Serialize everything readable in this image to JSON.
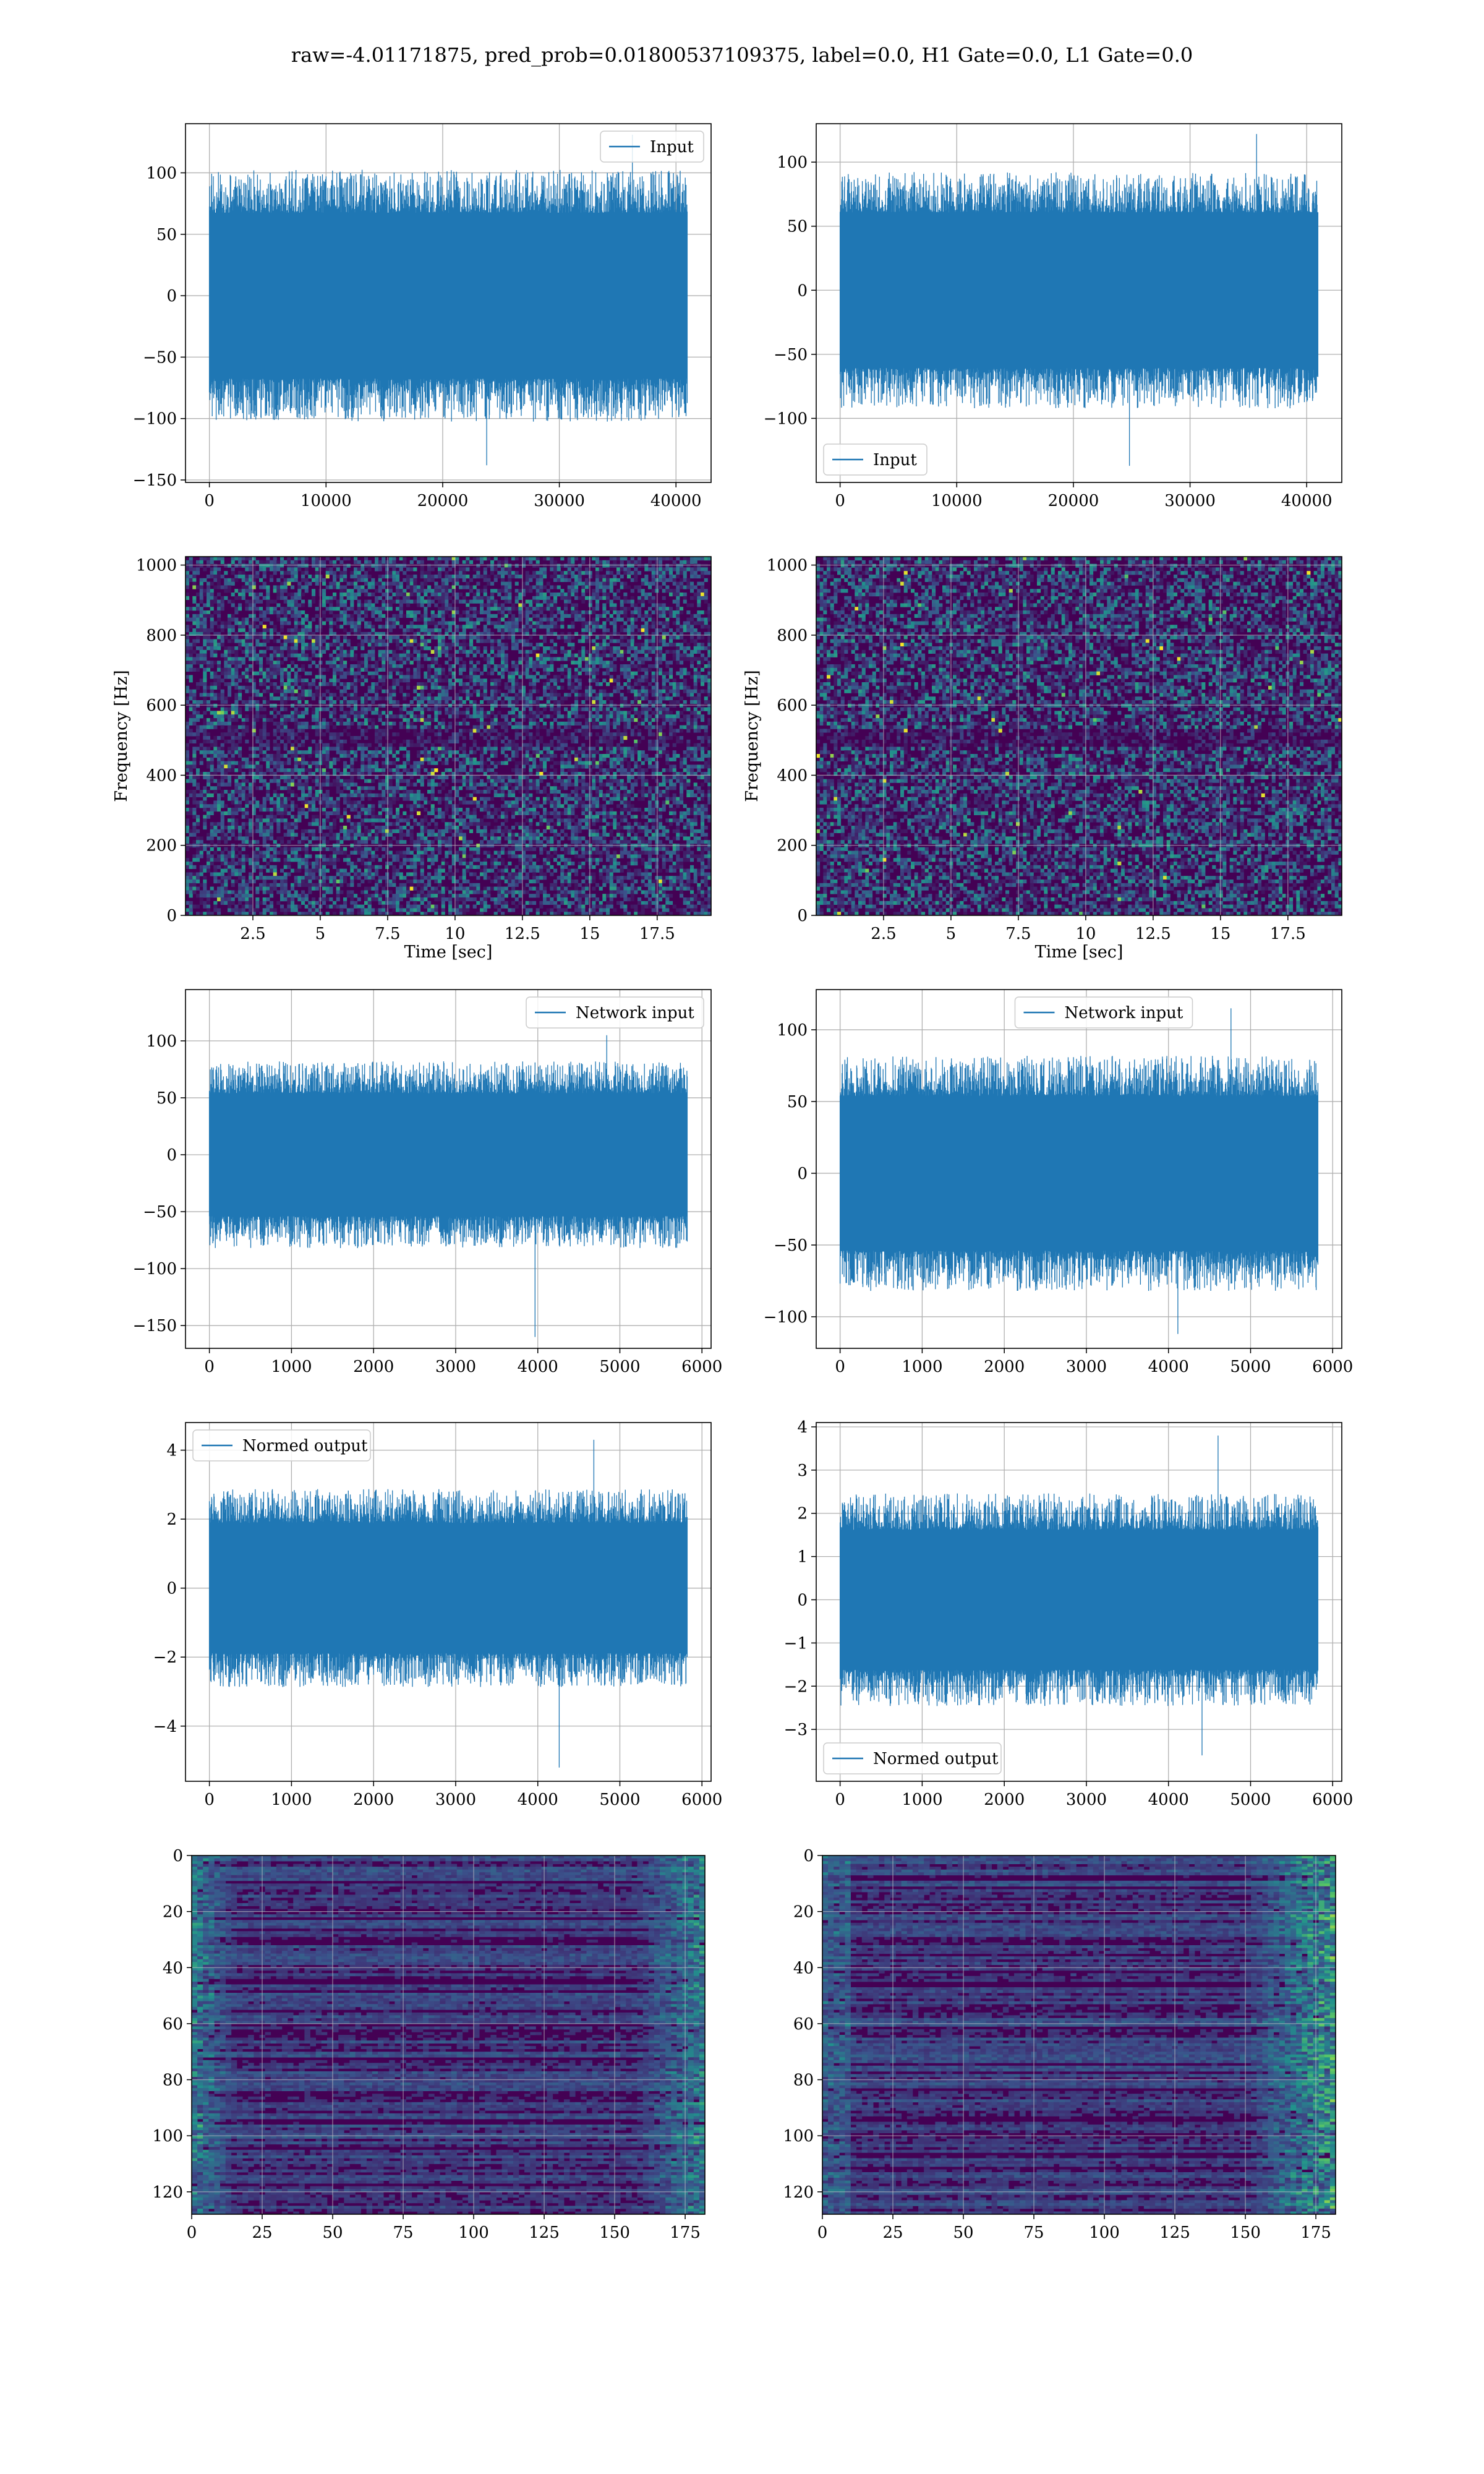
{
  "suptitle": "raw=-4.01171875, pred_prob=0.01800537109375, label=0.0, H1 Gate=0.0, L1 Gate=0.0",
  "colors": {
    "series": "#1f77b4",
    "grid": "#b0b0b0",
    "viridis_low": "#440154",
    "viridis_mid": "#21918c",
    "viridis_high": "#fde725"
  },
  "chart_data": [
    {
      "id": "h1-input",
      "type": "line",
      "signal": "dense-noise",
      "x_range": [
        0,
        40960
      ],
      "ylim": [
        -152,
        140
      ],
      "xticks": [
        0,
        10000,
        20000,
        30000,
        40000
      ],
      "yticks": [
        -150,
        -100,
        -50,
        0,
        50,
        100
      ],
      "series": [
        {
          "name": "Input",
          "amplitude_core": 50,
          "peak_min": -138,
          "peak_max": 131
        }
      ],
      "legend": "top-right",
      "grid": true,
      "xlabel": "",
      "ylabel": ""
    },
    {
      "id": "l1-input",
      "type": "line",
      "signal": "dense-noise",
      "x_range": [
        0,
        40960
      ],
      "ylim": [
        -150,
        130
      ],
      "xticks": [
        0,
        10000,
        20000,
        30000,
        40000
      ],
      "yticks": [
        -100,
        -50,
        0,
        50,
        100
      ],
      "series": [
        {
          "name": "Input",
          "amplitude_core": 45,
          "peak_min": -137,
          "peak_max": 122
        }
      ],
      "legend": "bottom-left",
      "grid": true,
      "xlabel": "",
      "ylabel": ""
    },
    {
      "id": "h1-spectrogram",
      "type": "heatmap",
      "xlim": [
        0,
        19.5
      ],
      "ylim": [
        0,
        1024
      ],
      "xticks": [
        2.5,
        5.0,
        7.5,
        10.0,
        12.5,
        15.0,
        17.5
      ],
      "yticks": [
        0,
        200,
        400,
        600,
        800,
        1000
      ],
      "xlabel": "Time [sec]",
      "ylabel": "Frequency [Hz]",
      "colormap": "viridis",
      "grid": true
    },
    {
      "id": "l1-spectrogram",
      "type": "heatmap",
      "xlim": [
        0,
        19.5
      ],
      "ylim": [
        0,
        1024
      ],
      "xticks": [
        2.5,
        5.0,
        7.5,
        10.0,
        12.5,
        15.0,
        17.5
      ],
      "yticks": [
        0,
        200,
        400,
        600,
        800,
        1000
      ],
      "xlabel": "Time [sec]",
      "ylabel": "Frequency [Hz]",
      "colormap": "viridis",
      "grid": true
    },
    {
      "id": "h1-network-input",
      "type": "line",
      "signal": "dense-noise",
      "x_range": [
        0,
        5820
      ],
      "ylim": [
        -170,
        145
      ],
      "xticks": [
        0,
        1000,
        2000,
        3000,
        4000,
        5000,
        6000
      ],
      "yticks": [
        -150,
        -100,
        -50,
        0,
        50,
        100
      ],
      "series": [
        {
          "name": "Network input",
          "amplitude_core": 40,
          "peak_min": -160,
          "peak_max": 105
        }
      ],
      "legend": "top-right",
      "grid": true,
      "xlabel": "",
      "ylabel": ""
    },
    {
      "id": "l1-network-input",
      "type": "line",
      "signal": "dense-noise",
      "x_range": [
        0,
        5820
      ],
      "ylim": [
        -122,
        128
      ],
      "xticks": [
        0,
        1000,
        2000,
        3000,
        4000,
        5000,
        6000
      ],
      "yticks": [
        -100,
        -50,
        0,
        50,
        100
      ],
      "series": [
        {
          "name": "Network input",
          "amplitude_core": 40,
          "peak_min": -112,
          "peak_max": 115
        }
      ],
      "legend": "top-center",
      "grid": true,
      "xlabel": "",
      "ylabel": ""
    },
    {
      "id": "h1-normed-output",
      "type": "line",
      "signal": "dense-noise",
      "x_range": [
        0,
        5820
      ],
      "ylim": [
        -5.6,
        4.8
      ],
      "xticks": [
        0,
        1000,
        2000,
        3000,
        4000,
        5000,
        6000
      ],
      "yticks": [
        -4,
        -2,
        0,
        2,
        4
      ],
      "series": [
        {
          "name": "Normed output",
          "amplitude_core": 1.4,
          "peak_min": -5.2,
          "peak_max": 4.3
        }
      ],
      "legend": "top-left",
      "grid": true,
      "xlabel": "",
      "ylabel": ""
    },
    {
      "id": "l1-normed-output",
      "type": "line",
      "signal": "dense-noise",
      "x_range": [
        0,
        5820
      ],
      "ylim": [
        -4.2,
        4.1
      ],
      "xticks": [
        0,
        1000,
        2000,
        3000,
        4000,
        5000,
        6000
      ],
      "yticks": [
        -3,
        -2,
        -1,
        0,
        1,
        2,
        3,
        4
      ],
      "series": [
        {
          "name": "Normed output",
          "amplitude_core": 1.2,
          "peak_min": -3.6,
          "peak_max": 3.8
        }
      ],
      "legend": "bottom-left",
      "grid": true,
      "xlabel": "",
      "ylabel": ""
    },
    {
      "id": "h1-feature-map",
      "type": "heatmap",
      "xlim": [
        0,
        182
      ],
      "ylim": [
        128,
        0
      ],
      "xticks": [
        0,
        25,
        50,
        75,
        100,
        125,
        150,
        175
      ],
      "yticks": [
        0,
        20,
        40,
        60,
        80,
        100,
        120
      ],
      "xlabel": "",
      "ylabel": "",
      "colormap": "viridis",
      "bright_edges": "left-and-right",
      "grid": true
    },
    {
      "id": "l1-feature-map",
      "type": "heatmap",
      "xlim": [
        0,
        182
      ],
      "ylim": [
        128,
        0
      ],
      "xticks": [
        0,
        25,
        50,
        75,
        100,
        125,
        150,
        175
      ],
      "yticks": [
        0,
        20,
        40,
        60,
        80,
        100,
        120
      ],
      "xlabel": "",
      "ylabel": "",
      "colormap": "viridis",
      "bright_edges": "right",
      "grid": true
    }
  ]
}
